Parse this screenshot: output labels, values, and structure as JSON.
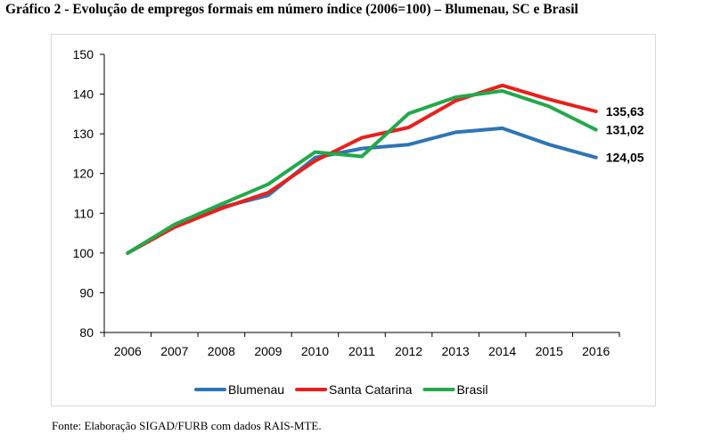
{
  "page": {
    "title": "Gráfico 2 - Evolução de empregos formais em número índice (2006=100) – Blumenau, SC e Brasil",
    "source": "Fonte: Elaboração SIGAD/FURB com dados RAIS-MTE."
  },
  "chart_data": {
    "type": "line",
    "title": "",
    "xlabel": "",
    "ylabel": "",
    "x": [
      "2006",
      "2007",
      "2008",
      "2009",
      "2010",
      "2011",
      "2012",
      "2013",
      "2014",
      "2015",
      "2016"
    ],
    "ylim": [
      80,
      150
    ],
    "yticks": [
      "80",
      "90",
      "100",
      "110",
      "120",
      "130",
      "140",
      "150"
    ],
    "grid": false,
    "legend_position": "bottom",
    "series": [
      {
        "name": "Blumenau",
        "color": "#2e75b6",
        "values": [
          100,
          107,
          111.5,
          114.5,
          124,
          126.3,
          127.3,
          130.4,
          131.4,
          127.3,
          124.05
        ],
        "end_label": "124,05"
      },
      {
        "name": "Santa Catarina",
        "color": "#e8201c",
        "values": [
          100,
          106.5,
          111.2,
          115.2,
          123.2,
          129,
          131.6,
          138.3,
          142.2,
          138.7,
          135.63
        ],
        "end_label": "135,63"
      },
      {
        "name": "Brasil",
        "color": "#23a94a",
        "values": [
          100,
          107.2,
          112.3,
          117.3,
          125.4,
          124.3,
          135.1,
          139.2,
          140.8,
          136.9,
          131.02
        ],
        "end_label": "131,02"
      }
    ]
  }
}
